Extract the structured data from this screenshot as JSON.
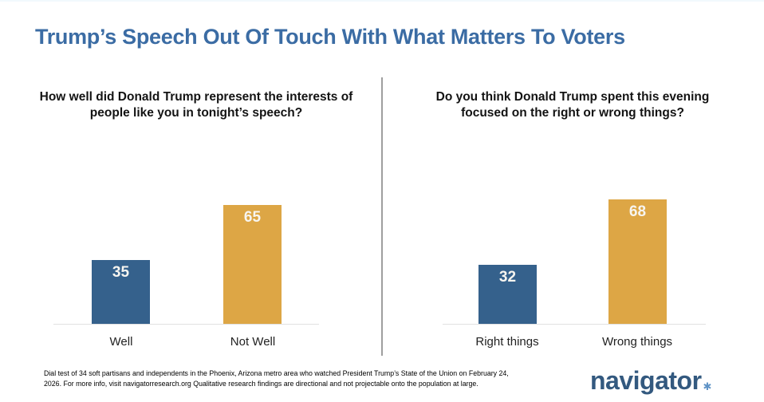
{
  "slide": {
    "title": "Trump’s Speech Out Of Touch With What Matters To Voters"
  },
  "questions": {
    "left": {
      "line1": "How well did Donald Trump represent the interests of",
      "line2": "people like you in tonight’s speech?"
    },
    "right": {
      "line1": "Do you think Donald Trump spent this evening",
      "line2": "focused on the right or wrong things?"
    }
  },
  "chart_data": [
    {
      "type": "bar",
      "title": "How well did Donald Trump represent the interests of people like you in tonight’s speech?",
      "categories": [
        "Well",
        "Not Well"
      ],
      "values": [
        35,
        65
      ],
      "bar_colors": [
        "#35618c",
        "#dda645"
      ],
      "ylim": [
        0,
        100
      ],
      "grid": "off",
      "legend": "none",
      "value_label_position": "inside-top"
    },
    {
      "type": "bar",
      "title": "Do you think Donald Trump spent this evening focused on the right or wrong things?",
      "categories": [
        "Right things",
        "Wrong things"
      ],
      "values": [
        32,
        68
      ],
      "bar_colors": [
        "#35618c",
        "#dda645"
      ],
      "ylim": [
        0,
        100
      ],
      "grid": "off",
      "legend": "none",
      "value_label_position": "inside-top"
    }
  ],
  "footnote": {
    "line1": "Dial test of 34 soft partisans and independents in the Phoenix, Arizona metro area who watched President Trump’s State of the Union on February 24,",
    "line2": "2026. For more info, visit navigatorresearch.org Qualitative research findings are directional and not projectable onto the population at large."
  },
  "logo": {
    "text": "navigator",
    "star_icon": "✱"
  },
  "colors": {
    "title_blue": "#3b6ca4",
    "bar_blue": "#35618c",
    "bar_gold": "#dda645",
    "logo_navy": "#33597f",
    "logo_star_blue": "#5f93c6",
    "divider_gray": "#9e9e9e",
    "baseline_gray": "#e2e2e2",
    "value_label_white": "#f7f5f0"
  }
}
